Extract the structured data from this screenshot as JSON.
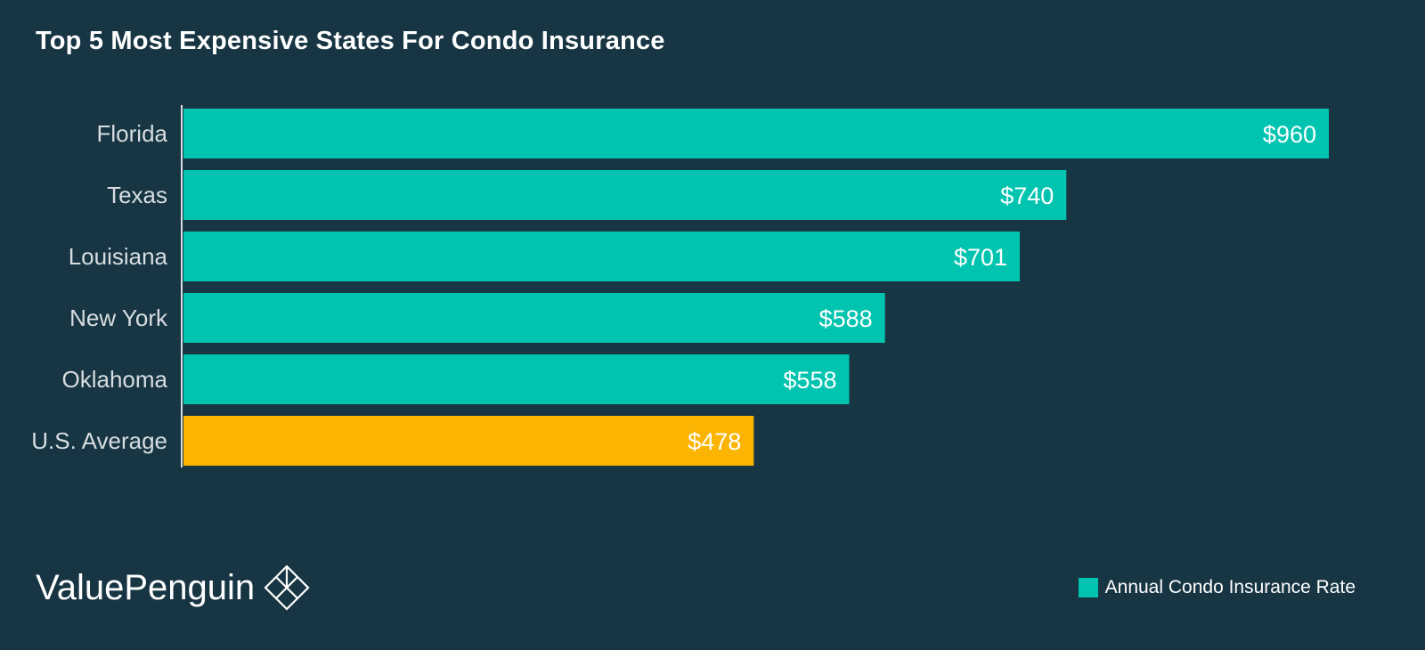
{
  "chart_data": {
    "type": "bar",
    "orientation": "horizontal",
    "title": "Top 5 Most Expensive States For Condo Insurance",
    "categories": [
      "Florida",
      "Texas",
      "Louisiana",
      "New York",
      "Oklahoma",
      "U.S. Average"
    ],
    "values": [
      960,
      740,
      701,
      588,
      558,
      478
    ],
    "value_labels": [
      "$960",
      "$740",
      "$701",
      "$588",
      "$558",
      "$478"
    ],
    "series": [
      {
        "name": "Annual Condo Insurance Rate",
        "values": [
          960,
          740,
          701,
          588,
          558,
          478
        ]
      }
    ],
    "highlight_category": "U.S. Average",
    "xlim": [
      0,
      960
    ],
    "grid": false,
    "legend_position": "bottom-right",
    "colors": {
      "bar": "#00c4b0",
      "highlight": "#fbb401",
      "axis": "#d7dde0"
    }
  },
  "brand": {
    "name": "ValuePenguin",
    "logo_icon": "diamond-penguin-icon"
  },
  "legend": {
    "label": "Annual Condo Insurance Rate",
    "color": "#00c4b0"
  }
}
